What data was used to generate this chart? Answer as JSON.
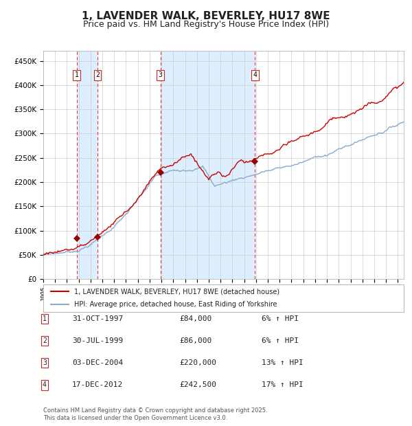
{
  "title": "1, LAVENDER WALK, BEVERLEY, HU17 8WE",
  "subtitle": "Price paid vs. HM Land Registry's House Price Index (HPI)",
  "title_fontsize": 11,
  "subtitle_fontsize": 9,
  "background_color": "#ffffff",
  "plot_bg_color": "#ffffff",
  "grid_color": "#cccccc",
  "ylim": [
    0,
    470000
  ],
  "yticks": [
    0,
    50000,
    100000,
    150000,
    200000,
    250000,
    300000,
    350000,
    400000,
    450000
  ],
  "red_line_color": "#cc0000",
  "blue_line_color": "#88aacc",
  "shade_color": "#ddeeff",
  "dashed_line_color": "#ee3333",
  "marker_color": "#990000",
  "legend_red_label": "1, LAVENDER WALK, BEVERLEY, HU17 8WE (detached house)",
  "legend_blue_label": "HPI: Average price, detached house, East Riding of Yorkshire",
  "table_entries": [
    {
      "num": "1",
      "date": "31-OCT-1997",
      "price": "£84,000",
      "hpi": "6% ↑ HPI"
    },
    {
      "num": "2",
      "date": "30-JUL-1999",
      "price": "£86,000",
      "hpi": "6% ↑ HPI"
    },
    {
      "num": "3",
      "date": "03-DEC-2004",
      "price": "£220,000",
      "hpi": "13% ↑ HPI"
    },
    {
      "num": "4",
      "date": "17-DEC-2012",
      "price": "£242,500",
      "hpi": "17% ↑ HPI"
    }
  ],
  "footer_text": "Contains HM Land Registry data © Crown copyright and database right 2025.\nThis data is licensed under the Open Government Licence v3.0."
}
